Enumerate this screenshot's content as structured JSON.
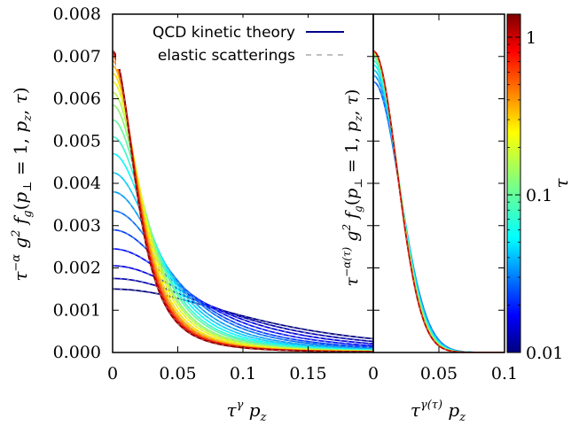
{
  "legend": {
    "solid": "QCD kinetic theory",
    "dashed": "elastic scatterings"
  },
  "labels": {
    "left_y": "τ^{-α} g² f_g(p_⊥ = 1, p_z, τ)",
    "left_x": "τ^γ p_z",
    "right_y": "τ^{-α(τ)} g² f_g(p_⊥ = 1, p_z, τ)",
    "right_x": "τ^{γ(τ)} p_z",
    "colorbar": "τ"
  },
  "colors": {
    "solid_line": "#00008b",
    "dashed_line": "#aaaaaa"
  },
  "chart_data": [
    {
      "type": "line",
      "panel": "left",
      "xlabel": "τ^γ p_z",
      "ylabel": "τ^{-α} g² f_g(p_⊥ = 1, p_z, τ)",
      "xlim": [
        0,
        0.2
      ],
      "ylim": [
        0,
        0.008
      ],
      "xticks": [
        "0",
        "0.05",
        "0.1",
        "0.15"
      ],
      "yticks": [
        "0.000",
        "0.001",
        "0.002",
        "0.003",
        "0.004",
        "0.005",
        "0.006",
        "0.007",
        "0.008"
      ],
      "curve_model": "y = a / (1 + (x/w)^2)^1.5",
      "series": [
        {
          "tau": 0.01,
          "a": 0.0015,
          "w": 0.15
        },
        {
          "tau": 0.0126,
          "a": 0.00175,
          "w": 0.125
        },
        {
          "tau": 0.0158,
          "a": 0.00205,
          "w": 0.105
        },
        {
          "tau": 0.02,
          "a": 0.00245,
          "w": 0.088
        },
        {
          "tau": 0.0251,
          "a": 0.0029,
          "w": 0.075
        },
        {
          "tau": 0.0316,
          "a": 0.00335,
          "w": 0.066
        },
        {
          "tau": 0.0398,
          "a": 0.0038,
          "w": 0.058
        },
        {
          "tau": 0.0501,
          "a": 0.00425,
          "w": 0.052
        },
        {
          "tau": 0.0631,
          "a": 0.0047,
          "w": 0.047
        },
        {
          "tau": 0.0794,
          "a": 0.0051,
          "w": 0.043
        },
        {
          "tau": 0.1,
          "a": 0.0055,
          "w": 0.04
        },
        {
          "tau": 0.126,
          "a": 0.00585,
          "w": 0.037
        },
        {
          "tau": 0.158,
          "a": 0.00615,
          "w": 0.035
        },
        {
          "tau": 0.2,
          "a": 0.0064,
          "w": 0.033
        },
        {
          "tau": 0.251,
          "a": 0.0066,
          "w": 0.031
        },
        {
          "tau": 0.316,
          "a": 0.00678,
          "w": 0.0295
        },
        {
          "tau": 0.398,
          "a": 0.0069,
          "w": 0.0285
        },
        {
          "tau": 0.501,
          "a": 0.007,
          "w": 0.0275
        },
        {
          "tau": 0.631,
          "a": 0.00706,
          "w": 0.027
        },
        {
          "tau": 0.794,
          "a": 0.0071,
          "w": 0.0265
        },
        {
          "tau": 1.0,
          "a": 0.00712,
          "w": 0.026
        },
        {
          "tau": 1.26,
          "a": 0.00713,
          "w": 0.0258
        }
      ]
    },
    {
      "type": "line",
      "panel": "right",
      "xlabel": "τ^{γ(τ)} p_z",
      "ylabel": "τ^{-α(τ)} g² f_g(p_⊥ = 1, p_z, τ)",
      "xlim": [
        0,
        0.1
      ],
      "ylim": [
        0,
        0.008
      ],
      "xticks": [
        "0.05",
        "0.1"
      ],
      "curve_model": "y = a * exp(-(x/w)^2)",
      "series": [
        {
          "tau": 0.03,
          "a": 0.0064,
          "w": 0.0285
        },
        {
          "tau": 0.0398,
          "a": 0.00655,
          "w": 0.028
        },
        {
          "tau": 0.0501,
          "a": 0.00668,
          "w": 0.0276
        },
        {
          "tau": 0.0631,
          "a": 0.0068,
          "w": 0.0272
        },
        {
          "tau": 0.0794,
          "a": 0.0069,
          "w": 0.0268
        },
        {
          "tau": 0.1,
          "a": 0.00698,
          "w": 0.0265
        },
        {
          "tau": 0.126,
          "a": 0.00704,
          "w": 0.0262
        },
        {
          "tau": 0.158,
          "a": 0.00708,
          "w": 0.026
        },
        {
          "tau": 0.2,
          "a": 0.0071,
          "w": 0.0258
        },
        {
          "tau": 0.316,
          "a": 0.00712,
          "w": 0.0257
        },
        {
          "tau": 0.501,
          "a": 0.00713,
          "w": 0.0256
        },
        {
          "tau": 1.0,
          "a": 0.00713,
          "w": 0.0256
        }
      ]
    }
  ],
  "colorbar": {
    "scale": "log",
    "range": [
      0.01,
      1.4
    ],
    "ticks": [
      {
        "value": 0.01,
        "label": "0.01"
      },
      {
        "value": 0.1,
        "label": "0.1"
      },
      {
        "value": 1,
        "label": "1"
      }
    ],
    "colormap": "jet"
  }
}
